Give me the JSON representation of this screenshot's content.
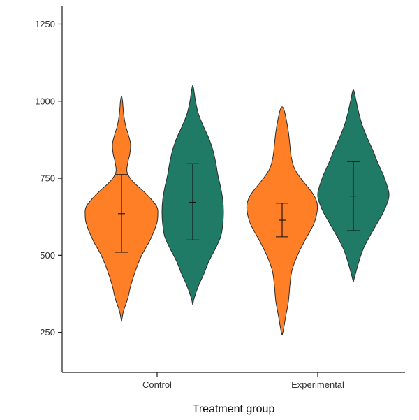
{
  "chart_data": {
    "type": "violin",
    "title": "",
    "xlabel": "Treatment group",
    "ylabel": "",
    "categories": [
      "Control",
      "Experimental"
    ],
    "ylim": [
      120,
      1310
    ],
    "yticks": [
      250,
      500,
      750,
      1000,
      1250
    ],
    "grid": false,
    "legend": "none",
    "series_colors": [
      "#FF7F26",
      "#1F7A66"
    ],
    "violins": [
      {
        "category": "Control",
        "series_index": 0,
        "offset": -1,
        "min": 285,
        "max": 1017,
        "mean": 635,
        "err_low": 510,
        "err_high": 762,
        "profile": [
          [
            285,
            0
          ],
          [
            320,
            3
          ],
          [
            360,
            9
          ],
          [
            400,
            13
          ],
          [
            450,
            20
          ],
          [
            500,
            29
          ],
          [
            550,
            41
          ],
          [
            600,
            50
          ],
          [
            630,
            52
          ],
          [
            660,
            50
          ],
          [
            700,
            35
          ],
          [
            740,
            16
          ],
          [
            770,
            8
          ],
          [
            800,
            9
          ],
          [
            830,
            12
          ],
          [
            860,
            13
          ],
          [
            890,
            10
          ],
          [
            920,
            6
          ],
          [
            960,
            3
          ],
          [
            1000,
            1.5
          ],
          [
            1017,
            0
          ]
        ]
      },
      {
        "category": "Control",
        "series_index": 1,
        "offset": 1,
        "min": 338,
        "max": 1052,
        "mean": 672,
        "err_low": 550,
        "err_high": 797,
        "profile": [
          [
            338,
            0
          ],
          [
            360,
            2
          ],
          [
            400,
            8
          ],
          [
            440,
            16
          ],
          [
            480,
            23
          ],
          [
            520,
            32
          ],
          [
            560,
            40
          ],
          [
            600,
            43
          ],
          [
            640,
            44
          ],
          [
            680,
            43
          ],
          [
            720,
            40
          ],
          [
            760,
            36
          ],
          [
            800,
            33
          ],
          [
            840,
            29
          ],
          [
            880,
            23
          ],
          [
            920,
            15
          ],
          [
            960,
            8
          ],
          [
            1000,
            4
          ],
          [
            1030,
            2
          ],
          [
            1052,
            0
          ]
        ]
      },
      {
        "category": "Experimental",
        "series_index": 0,
        "offset": -1,
        "min": 240,
        "max": 982,
        "mean": 614,
        "err_low": 560,
        "err_high": 669,
        "profile": [
          [
            240,
            0
          ],
          [
            260,
            2
          ],
          [
            300,
            5
          ],
          [
            350,
            9
          ],
          [
            400,
            11
          ],
          [
            450,
            14
          ],
          [
            500,
            22
          ],
          [
            550,
            33
          ],
          [
            600,
            45
          ],
          [
            640,
            50
          ],
          [
            670,
            50
          ],
          [
            700,
            44
          ],
          [
            740,
            30
          ],
          [
            780,
            18
          ],
          [
            820,
            13
          ],
          [
            860,
            11
          ],
          [
            900,
            9
          ],
          [
            940,
            6
          ],
          [
            970,
            3
          ],
          [
            982,
            0
          ]
        ]
      },
      {
        "category": "Experimental",
        "series_index": 1,
        "offset": 1,
        "min": 413,
        "max": 1037,
        "mean": 692,
        "err_low": 580,
        "err_high": 804,
        "profile": [
          [
            413,
            0
          ],
          [
            440,
            3
          ],
          [
            480,
            8
          ],
          [
            520,
            14
          ],
          [
            560,
            23
          ],
          [
            600,
            33
          ],
          [
            640,
            43
          ],
          [
            680,
            50
          ],
          [
            700,
            51
          ],
          [
            720,
            49
          ],
          [
            760,
            43
          ],
          [
            800,
            35
          ],
          [
            840,
            28
          ],
          [
            880,
            20
          ],
          [
            920,
            13
          ],
          [
            960,
            8
          ],
          [
            1000,
            4
          ],
          [
            1037,
            0
          ]
        ]
      }
    ]
  }
}
